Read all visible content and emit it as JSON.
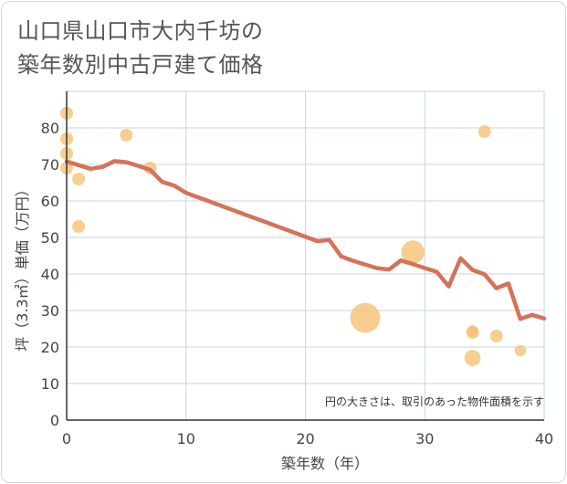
{
  "title_line1": "山口県山口市大内千坊の",
  "title_line2": "築年数別中古戸建て価格",
  "note": "円の大きさは、取引のあった物件面積を示す",
  "colors": {
    "line": "#d4735a",
    "bubble": "#f5c06f",
    "grid": "#c5d5e3",
    "axis": "#333333",
    "plot_bg": "#ffffff"
  },
  "chart_data": {
    "type": "scatter",
    "xlabel": "築年数（年）",
    "ylabel": "坪（3.3㎡）単価（万円）",
    "xlim": [
      0,
      40
    ],
    "ylim": [
      0,
      90
    ],
    "xticks": [
      0,
      10,
      20,
      30,
      40
    ],
    "yticks": [
      0,
      10,
      20,
      30,
      40,
      50,
      60,
      70,
      80
    ],
    "grid": true,
    "trend_line": {
      "x": [
        0,
        1,
        2,
        3,
        4,
        5,
        6,
        7,
        8,
        9,
        10,
        11,
        12,
        13,
        14,
        15,
        16,
        17,
        18,
        19,
        20,
        21,
        22,
        23,
        24,
        25,
        26,
        27,
        28,
        29,
        30,
        31,
        32,
        33,
        34,
        35,
        36,
        37,
        38,
        39,
        40
      ],
      "y": [
        70.8,
        69.8,
        68.8,
        69.3,
        70.9,
        70.6,
        69.6,
        68.5,
        65.2,
        64.2,
        62.2,
        61.0,
        59.8,
        58.6,
        57.4,
        56.2,
        55.0,
        53.8,
        52.6,
        51.4,
        50.2,
        49.0,
        49.3,
        44.8,
        43.6,
        42.6,
        41.6,
        41.2,
        43.7,
        42.7,
        41.6,
        40.6,
        36.6,
        44.3,
        41.1,
        39.9,
        36.1,
        37.4,
        27.7,
        28.8,
        27.8
      ]
    },
    "bubbles": [
      {
        "x": 0,
        "y": 84,
        "size": 1
      },
      {
        "x": 0,
        "y": 77,
        "size": 1
      },
      {
        "x": 0,
        "y": 73,
        "size": 1
      },
      {
        "x": 0,
        "y": 69,
        "size": 1
      },
      {
        "x": 1,
        "y": 66,
        "size": 1
      },
      {
        "x": 1,
        "y": 53,
        "size": 1
      },
      {
        "x": 5,
        "y": 78,
        "size": 1
      },
      {
        "x": 7,
        "y": 69,
        "size": 1
      },
      {
        "x": 25,
        "y": 28,
        "size": 5.5
      },
      {
        "x": 29,
        "y": 46,
        "size": 3.3
      },
      {
        "x": 34,
        "y": 24.5,
        "size": 0.7
      },
      {
        "x": 34,
        "y": 24,
        "size": 1
      },
      {
        "x": 34,
        "y": 17,
        "size": 1.6
      },
      {
        "x": 35,
        "y": 79,
        "size": 1
      },
      {
        "x": 36,
        "y": 23,
        "size": 1
      },
      {
        "x": 38,
        "y": 19,
        "size": 0.8
      }
    ]
  }
}
